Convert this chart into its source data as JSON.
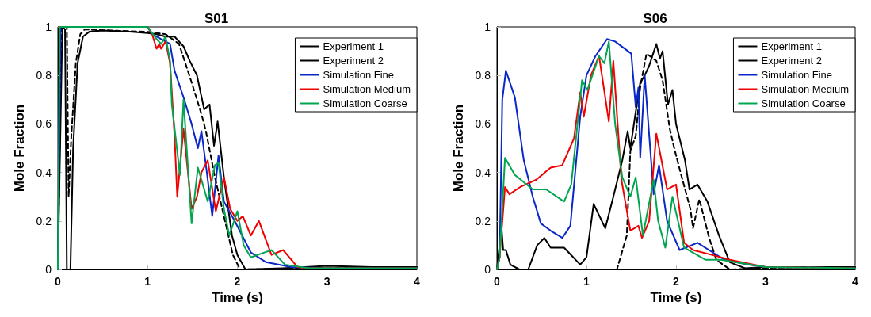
{
  "chart_data": [
    {
      "type": "line",
      "title": "S01",
      "xlabel": "Time (s)",
      "ylabel": "Mole Fraction",
      "xlim": [
        0,
        4
      ],
      "xticks": [
        0,
        1,
        2,
        3,
        4
      ],
      "ylim": [
        0,
        1
      ],
      "yticks": [
        0,
        0.2,
        0.4,
        0.6,
        0.8,
        1
      ],
      "grid": false,
      "legend": "top right",
      "marker": "none",
      "series": [
        {
          "name": "Experiment 1",
          "color": "#000000",
          "line_style": "solid",
          "x": [
            0,
            0.05,
            0.08,
            0.1,
            0.12,
            0.14,
            0.17,
            0.22,
            0.28,
            0.35,
            0.5,
            0.8,
            1.0,
            1.1,
            1.2,
            1.3,
            1.4,
            1.47,
            1.55,
            1.63,
            1.69,
            1.74,
            1.78,
            1.85,
            1.94,
            2.0,
            2.09,
            2.5,
            3.0,
            3.5,
            4.0
          ],
          "values": [
            0,
            1.0,
            0.99,
            0.0,
            0.0,
            0.0,
            0.5,
            0.85,
            0.96,
            0.98,
            0.985,
            0.98,
            0.975,
            0.97,
            0.96,
            0.96,
            0.92,
            0.86,
            0.8,
            0.66,
            0.68,
            0.51,
            0.61,
            0.38,
            0.14,
            0.06,
            0.0,
            0.005,
            0.015,
            0.01,
            0.01
          ]
        },
        {
          "name": "Experiment 2",
          "color": "#000000",
          "line_style": "dashed",
          "x": [
            0,
            0.04,
            0.1,
            0.12,
            0.15,
            0.2,
            0.25,
            0.3,
            0.6,
            1.0,
            1.2,
            1.35,
            1.5,
            1.6,
            1.65,
            1.75,
            1.85,
            1.95,
            2.03,
            3.0,
            4.0
          ],
          "values": [
            0,
            1.0,
            1.0,
            0.3,
            0.55,
            0.85,
            0.97,
            0.99,
            0.985,
            0.98,
            0.97,
            0.93,
            0.76,
            0.64,
            0.57,
            0.38,
            0.22,
            0.06,
            0.0,
            0.005,
            0.01
          ]
        },
        {
          "name": "Simulation Fine",
          "color": "#0a28c8",
          "line_style": "solid",
          "x": [
            0,
            0.03,
            1.0,
            1.05,
            1.15,
            1.25,
            1.3,
            1.4,
            1.49,
            1.56,
            1.6,
            1.66,
            1.72,
            1.79,
            1.85,
            1.97,
            2.15,
            2.32,
            2.6,
            3.0,
            4.0
          ],
          "values": [
            0,
            1.0,
            1.0,
            0.97,
            0.95,
            0.93,
            0.82,
            0.71,
            0.6,
            0.5,
            0.57,
            0.4,
            0.22,
            0.47,
            0.28,
            0.2,
            0.07,
            0.03,
            0.01,
            0.005,
            0.005
          ]
        },
        {
          "name": "Simulation Medium",
          "color": "#f00000",
          "line_style": "solid",
          "x": [
            0.01,
            1.0,
            1.05,
            1.1,
            1.13,
            1.15,
            1.2,
            1.25,
            1.3,
            1.33,
            1.4,
            1.49,
            1.55,
            1.6,
            1.67,
            1.76,
            1.85,
            1.92,
            2.0,
            2.06,
            2.15,
            2.24,
            2.38,
            2.51,
            2.67,
            2.8,
            4.0
          ],
          "values": [
            1.0,
            1.0,
            0.97,
            0.91,
            0.93,
            0.91,
            0.94,
            0.85,
            0.55,
            0.3,
            0.58,
            0.25,
            0.3,
            0.4,
            0.45,
            0.24,
            0.38,
            0.25,
            0.2,
            0.22,
            0.14,
            0.2,
            0.06,
            0.08,
            0.01,
            0.005,
            0.005
          ]
        },
        {
          "name": "Simulation Coarse",
          "color": "#00a550",
          "line_style": "solid",
          "x": [
            0,
            0.02,
            1.0,
            1.1,
            1.15,
            1.2,
            1.25,
            1.27,
            1.36,
            1.4,
            1.49,
            1.56,
            1.67,
            1.75,
            1.79,
            1.85,
            1.91,
            2.0,
            2.07,
            2.15,
            2.3,
            2.38,
            2.53,
            2.8,
            4.0
          ],
          "values": [
            0,
            1.0,
            1.0,
            0.95,
            0.93,
            0.96,
            0.86,
            0.68,
            0.39,
            0.7,
            0.19,
            0.42,
            0.28,
            0.43,
            0.44,
            0.25,
            0.14,
            0.24,
            0.1,
            0.05,
            0.07,
            0.08,
            0.02,
            0.005,
            0.005
          ]
        }
      ]
    },
    {
      "type": "line",
      "title": "S06",
      "xlabel": "Time (s)",
      "ylabel": "Mole Fraction",
      "xlim": [
        0,
        4
      ],
      "xticks": [
        0,
        1,
        2,
        3,
        4
      ],
      "ylim": [
        0,
        1
      ],
      "yticks": [
        0,
        0.2,
        0.4,
        0.6,
        0.8,
        1
      ],
      "grid": false,
      "legend": "top right",
      "marker": "none",
      "series": [
        {
          "name": "Experiment 1",
          "color": "#000000",
          "line_style": "solid",
          "x": [
            0,
            0.03,
            0.05,
            0.07,
            0.1,
            0.15,
            0.25,
            0.35,
            0.45,
            0.53,
            0.6,
            0.75,
            0.93,
            1.0,
            1.08,
            1.21,
            1.3,
            1.4,
            1.46,
            1.49,
            1.55,
            1.6,
            1.65,
            1.7,
            1.78,
            1.82,
            1.85,
            1.91,
            1.96,
            2.0,
            2.1,
            2.15,
            2.24,
            2.35,
            2.48,
            2.6,
            2.77,
            3.0,
            4.0
          ],
          "values": [
            0,
            0.1,
            0.18,
            0.08,
            0.08,
            0.02,
            0.0,
            0.0,
            0.1,
            0.13,
            0.09,
            0.09,
            0.02,
            0.05,
            0.27,
            0.17,
            0.3,
            0.45,
            0.57,
            0.5,
            0.65,
            0.77,
            0.8,
            0.84,
            0.93,
            0.87,
            0.9,
            0.68,
            0.74,
            0.6,
            0.45,
            0.33,
            0.35,
            0.28,
            0.14,
            0.03,
            0.005,
            0.01,
            0.01
          ]
        },
        {
          "name": "Experiment 2",
          "color": "#000000",
          "line_style": "dashed",
          "x": [
            0,
            1.34,
            1.45,
            1.49,
            1.55,
            1.6,
            1.67,
            1.78,
            1.85,
            1.93,
            1.98,
            2.05,
            2.16,
            2.19,
            2.26,
            2.37,
            2.45,
            2.6,
            3.0,
            4.0
          ],
          "values": [
            0,
            0.0,
            0.14,
            0.49,
            0.55,
            0.75,
            0.89,
            0.86,
            0.78,
            0.58,
            0.5,
            0.4,
            0.25,
            0.17,
            0.29,
            0.13,
            0.04,
            0.0,
            0.005,
            0.01
          ]
        },
        {
          "name": "Simulation Fine",
          "color": "#0a28c8",
          "line_style": "solid",
          "x": [
            0,
            0.03,
            0.06,
            0.1,
            0.2,
            0.3,
            0.4,
            0.49,
            0.6,
            0.73,
            0.82,
            0.93,
            1.0,
            1.1,
            1.23,
            1.32,
            1.5,
            1.55,
            1.58,
            1.6,
            1.65,
            1.75,
            1.81,
            1.9,
            2.04,
            2.24,
            2.54,
            2.8,
            3.0,
            4.0
          ],
          "values": [
            0,
            0.05,
            0.7,
            0.82,
            0.71,
            0.45,
            0.3,
            0.19,
            0.16,
            0.13,
            0.18,
            0.63,
            0.8,
            0.88,
            0.95,
            0.94,
            0.89,
            0.67,
            0.75,
            0.46,
            0.8,
            0.31,
            0.43,
            0.2,
            0.08,
            0.11,
            0.04,
            0.02,
            0.01,
            0.005
          ]
        },
        {
          "name": "Simulation Medium",
          "color": "#f00000",
          "line_style": "solid",
          "x": [
            0,
            0.03,
            0.09,
            0.14,
            0.26,
            0.44,
            0.6,
            0.73,
            0.86,
            0.93,
            0.97,
            1.05,
            1.14,
            1.25,
            1.3,
            1.39,
            1.49,
            1.58,
            1.62,
            1.7,
            1.78,
            1.9,
            2.0,
            2.09,
            2.19,
            2.4,
            2.6,
            3.0,
            4.0
          ],
          "values": [
            0,
            0.05,
            0.34,
            0.31,
            0.34,
            0.37,
            0.42,
            0.43,
            0.54,
            0.73,
            0.63,
            0.8,
            0.88,
            0.61,
            0.86,
            0.37,
            0.16,
            0.18,
            0.13,
            0.2,
            0.56,
            0.33,
            0.35,
            0.11,
            0.08,
            0.06,
            0.04,
            0.01,
            0.005
          ]
        },
        {
          "name": "Simulation Coarse",
          "color": "#00a550",
          "line_style": "solid",
          "x": [
            0,
            0.03,
            0.09,
            0.2,
            0.4,
            0.55,
            0.75,
            0.83,
            0.95,
            1.01,
            1.14,
            1.2,
            1.25,
            1.32,
            1.4,
            1.49,
            1.55,
            1.63,
            1.75,
            1.8,
            1.88,
            1.96,
            2.09,
            2.33,
            2.5,
            3.0,
            4.0
          ],
          "values": [
            0,
            0.05,
            0.46,
            0.39,
            0.33,
            0.33,
            0.28,
            0.35,
            0.78,
            0.74,
            0.88,
            0.85,
            0.94,
            0.6,
            0.38,
            0.3,
            0.38,
            0.14,
            0.37,
            0.2,
            0.09,
            0.3,
            0.09,
            0.04,
            0.04,
            0.01,
            0.005
          ]
        }
      ]
    }
  ]
}
